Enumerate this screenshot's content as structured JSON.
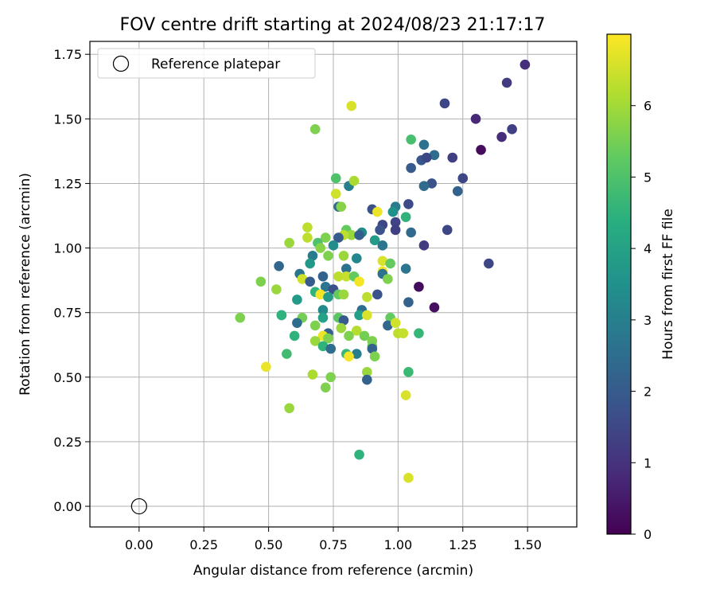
{
  "chart_data": {
    "type": "scatter",
    "title": "FOV centre drift starting at 2024/08/23 21:17:17",
    "xlabel": "Angular distance from reference (arcmin)",
    "ylabel": "Rotation from reference (arcmin)",
    "xlim": [
      -0.19,
      1.69
    ],
    "ylim": [
      -0.08,
      1.8
    ],
    "xticks": [
      "0.00",
      "0.25",
      "0.50",
      "0.75",
      "1.00",
      "1.25",
      "1.50"
    ],
    "xtick_values": [
      0,
      0.25,
      0.5,
      0.75,
      1.0,
      1.25,
      1.5
    ],
    "yticks": [
      "0.00",
      "0.25",
      "0.50",
      "0.75",
      "1.00",
      "1.25",
      "1.50",
      "1.75"
    ],
    "ytick_values": [
      0,
      0.25,
      0.5,
      0.75,
      1.0,
      1.25,
      1.5,
      1.75
    ],
    "grid": true,
    "legend": {
      "entries": [
        "Reference platepar"
      ],
      "placement": "upper-left"
    },
    "reference_point": {
      "x": 0.0,
      "y": 0.0
    },
    "colorbar": {
      "label": "Hours from first FF file",
      "colormap": "viridis",
      "range": [
        0,
        7
      ],
      "ticks": [
        "0",
        "1",
        "2",
        "3",
        "4",
        "5",
        "6"
      ],
      "tick_values": [
        0,
        1,
        2,
        3,
        4,
        5,
        6
      ]
    },
    "points": [
      [
        1.49,
        1.71,
        0.9
      ],
      [
        1.42,
        1.64,
        1.2
      ],
      [
        1.18,
        1.56,
        1.5
      ],
      [
        1.3,
        1.5,
        0.8
      ],
      [
        1.44,
        1.46,
        1.3
      ],
      [
        1.4,
        1.43,
        0.9
      ],
      [
        1.32,
        1.38,
        0.2
      ],
      [
        1.1,
        1.4,
        2.6
      ],
      [
        1.14,
        1.36,
        2.5
      ],
      [
        1.21,
        1.35,
        1.3
      ],
      [
        1.09,
        1.34,
        1.9
      ],
      [
        1.11,
        1.35,
        1.5
      ],
      [
        1.05,
        1.31,
        2.0
      ],
      [
        1.05,
        1.42,
        4.9
      ],
      [
        1.25,
        1.27,
        1.5
      ],
      [
        1.13,
        1.25,
        1.8
      ],
      [
        1.1,
        1.24,
        2.4
      ],
      [
        1.23,
        1.22,
        2.2
      ],
      [
        0.68,
        1.46,
        5.6
      ],
      [
        0.82,
        1.55,
        6.6
      ],
      [
        0.76,
        1.27,
        5.0
      ],
      [
        0.81,
        1.24,
        3.0
      ],
      [
        0.83,
        1.26,
        6.1
      ],
      [
        0.76,
        1.21,
        6.5
      ],
      [
        0.77,
        1.16,
        2.4
      ],
      [
        0.78,
        1.16,
        5.7
      ],
      [
        0.9,
        1.15,
        1.7
      ],
      [
        0.92,
        1.14,
        6.8
      ],
      [
        0.99,
        1.16,
        2.9
      ],
      [
        1.04,
        1.17,
        1.6
      ],
      [
        1.03,
        1.12,
        4.5
      ],
      [
        0.98,
        1.14,
        3.5
      ],
      [
        0.99,
        1.1,
        1.4
      ],
      [
        0.94,
        1.09,
        1.5
      ],
      [
        0.93,
        1.07,
        1.8
      ],
      [
        0.99,
        1.07,
        1.3
      ],
      [
        1.05,
        1.06,
        2.4
      ],
      [
        1.19,
        1.07,
        1.5
      ],
      [
        0.86,
        1.06,
        3.3
      ],
      [
        0.8,
        1.07,
        5.3
      ],
      [
        0.82,
        1.05,
        5.9
      ],
      [
        0.79,
        1.05,
        6.3
      ],
      [
        0.85,
        1.05,
        2.1
      ],
      [
        0.65,
        1.08,
        6.3
      ],
      [
        0.65,
        1.04,
        6.3
      ],
      [
        0.72,
        1.04,
        5.6
      ],
      [
        0.77,
        1.04,
        2.0
      ],
      [
        0.69,
        1.02,
        5.0
      ],
      [
        0.7,
        1.0,
        5.7
      ],
      [
        0.75,
        1.01,
        3.4
      ],
      [
        0.58,
        1.02,
        5.9
      ],
      [
        0.91,
        1.03,
        3.8
      ],
      [
        0.94,
        1.01,
        2.7
      ],
      [
        1.1,
        1.01,
        1.2
      ],
      [
        0.67,
        0.97,
        2.9
      ],
      [
        0.73,
        0.97,
        5.6
      ],
      [
        0.79,
        0.97,
        5.9
      ],
      [
        0.84,
        0.96,
        3.2
      ],
      [
        0.94,
        0.95,
        6.6
      ],
      [
        0.97,
        0.94,
        5.3
      ],
      [
        0.54,
        0.93,
        2.3
      ],
      [
        0.66,
        0.94,
        3.7
      ],
      [
        0.8,
        0.92,
        2.6
      ],
      [
        0.94,
        0.91,
        6.9
      ],
      [
        0.94,
        0.9,
        2.6
      ],
      [
        1.03,
        0.92,
        2.7
      ],
      [
        1.35,
        0.94,
        1.5
      ],
      [
        0.62,
        0.9,
        2.7
      ],
      [
        0.71,
        0.89,
        2.2
      ],
      [
        0.77,
        0.89,
        6.3
      ],
      [
        0.8,
        0.89,
        6.4
      ],
      [
        0.83,
        0.89,
        5.3
      ],
      [
        0.85,
        0.87,
        6.9
      ],
      [
        0.96,
        0.88,
        5.6
      ],
      [
        0.47,
        0.87,
        5.6
      ],
      [
        0.53,
        0.84,
        5.9
      ],
      [
        0.63,
        0.88,
        6.5
      ],
      [
        0.66,
        0.87,
        2.0
      ],
      [
        0.72,
        0.85,
        2.7
      ],
      [
        0.75,
        0.84,
        1.7
      ],
      [
        1.08,
        0.85,
        0.2
      ],
      [
        0.68,
        0.83,
        4.5
      ],
      [
        0.7,
        0.82,
        6.9
      ],
      [
        0.73,
        0.81,
        3.8
      ],
      [
        0.77,
        0.82,
        5.3
      ],
      [
        0.79,
        0.82,
        5.9
      ],
      [
        0.88,
        0.81,
        6.3
      ],
      [
        0.92,
        0.82,
        1.8
      ],
      [
        0.61,
        0.8,
        3.8
      ],
      [
        1.04,
        0.79,
        2.2
      ],
      [
        1.14,
        0.77,
        0.3
      ],
      [
        0.71,
        0.76,
        3.3
      ],
      [
        0.86,
        0.76,
        2.5
      ],
      [
        0.55,
        0.74,
        2.7
      ],
      [
        0.55,
        0.74,
        4.5
      ],
      [
        0.39,
        0.73,
        5.6
      ],
      [
        0.63,
        0.73,
        5.5
      ],
      [
        0.71,
        0.73,
        4.0
      ],
      [
        0.77,
        0.73,
        5.2
      ],
      [
        0.79,
        0.72,
        2.0
      ],
      [
        0.85,
        0.74,
        3.9
      ],
      [
        0.88,
        0.74,
        6.6
      ],
      [
        0.97,
        0.73,
        5.3
      ],
      [
        0.61,
        0.71,
        2.5
      ],
      [
        0.96,
        0.7,
        2.3
      ],
      [
        0.99,
        0.71,
        6.5
      ],
      [
        0.68,
        0.7,
        5.6
      ],
      [
        0.78,
        0.69,
        5.9
      ],
      [
        0.84,
        0.68,
        6.2
      ],
      [
        0.73,
        0.67,
        2.2
      ],
      [
        0.71,
        0.66,
        6.8
      ],
      [
        0.81,
        0.66,
        5.6
      ],
      [
        0.87,
        0.66,
        5.5
      ],
      [
        1.0,
        0.67,
        6.3
      ],
      [
        1.02,
        0.67,
        6.4
      ],
      [
        1.08,
        0.67,
        4.6
      ],
      [
        0.6,
        0.66,
        4.5
      ],
      [
        0.68,
        0.64,
        5.9
      ],
      [
        0.73,
        0.65,
        5.6
      ],
      [
        0.9,
        0.64,
        5.6
      ],
      [
        0.71,
        0.62,
        4.5
      ],
      [
        0.74,
        0.61,
        2.5
      ],
      [
        0.9,
        0.62,
        5.5
      ],
      [
        0.9,
        0.61,
        2.2
      ],
      [
        0.57,
        0.59,
        4.8
      ],
      [
        0.8,
        0.59,
        4.7
      ],
      [
        0.84,
        0.59,
        3.0
      ],
      [
        0.91,
        0.58,
        5.6
      ],
      [
        0.81,
        0.58,
        6.9
      ],
      [
        0.88,
        0.52,
        5.9
      ],
      [
        1.04,
        0.52,
        4.7
      ],
      [
        0.49,
        0.54,
        6.8
      ],
      [
        0.67,
        0.51,
        6.1
      ],
      [
        0.74,
        0.5,
        5.6
      ],
      [
        0.88,
        0.49,
        2.2
      ],
      [
        0.72,
        0.46,
        5.6
      ],
      [
        1.03,
        0.43,
        6.6
      ],
      [
        0.58,
        0.38,
        5.9
      ],
      [
        0.85,
        0.2,
        4.5
      ],
      [
        1.04,
        0.11,
        6.6
      ]
    ]
  }
}
